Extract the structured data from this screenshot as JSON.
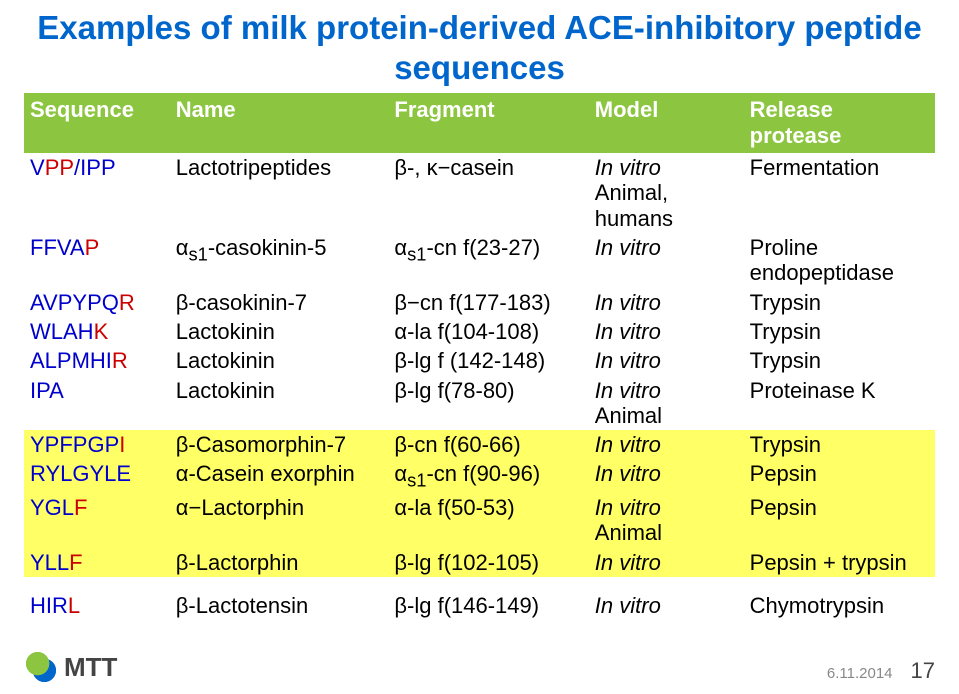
{
  "title": "Examples of milk protein-derived ACE-inhibitory peptide sequences",
  "headers": [
    "Sequence",
    "Name",
    "Fragment",
    "Model",
    "Release protease"
  ],
  "rows": [
    {
      "seq_pre": "V",
      "seq_red": "PP",
      "seq_post": "/IPP",
      "name": "Lactotripeptides",
      "frag": "β-, κ−casein",
      "model": "In vitro\nAnimal,\nhumans",
      "rel": "Fermentation",
      "hl": false
    },
    {
      "seq_pre": "FFVA",
      "seq_red": "P",
      "seq_post": "",
      "name": "αs1-casokinin-5",
      "frag": "αs1-cn f(23-27)",
      "model": "In vitro",
      "rel": "Proline endopeptidase",
      "hl": false
    },
    {
      "seq_pre": "AVPYPQ",
      "seq_red": "R",
      "seq_post": "",
      "name": "β-casokinin-7",
      "frag": "β−cn f(177-183)",
      "model": "In vitro",
      "rel": "Trypsin",
      "hl": false
    },
    {
      "seq_pre": "WLAH",
      "seq_red": "K",
      "seq_post": "",
      "name": "Lactokinin",
      "frag": "α-la f(104-108)",
      "model": "In vitro",
      "rel": "Trypsin",
      "hl": false
    },
    {
      "seq_pre": "ALPMHI",
      "seq_red": "R",
      "seq_post": "",
      "name": "Lactokinin",
      "frag": "β-lg f (142-148)",
      "model": "In vitro",
      "rel": "Trypsin",
      "hl": false
    },
    {
      "seq_pre": "IPA",
      "seq_red": "",
      "seq_post": "",
      "name": "Lactokinin",
      "frag": "β-lg f(78-80)",
      "model": "In vitro\nAnimal",
      "rel": "Proteinase K",
      "hl": false
    },
    {
      "seq_pre": "YPFPGP",
      "seq_red": "I",
      "seq_post": "",
      "name": "β-Casomorphin-7",
      "frag": "β-cn f(60-66)",
      "model": "In vitro",
      "rel": "Trypsin",
      "hl": true
    },
    {
      "seq_pre": "RYLGYLE",
      "seq_red": "",
      "seq_post": "",
      "name": "α-Casein exorphin",
      "frag": "αs1-cn f(90-96)",
      "model": "In vitro",
      "rel": "Pepsin",
      "hl": true
    },
    {
      "seq_pre": "YGL",
      "seq_red": "F",
      "seq_post": "",
      "name": "α−Lactorphin",
      "frag": "α-la f(50-53)",
      "model": "In vitro\nAnimal",
      "rel": "Pepsin",
      "hl": true
    },
    {
      "seq_pre": "YLL",
      "seq_red": "F",
      "seq_post": "",
      "name": "β-Lactorphin",
      "frag": "β-lg f(102-105)",
      "model": "In vitro",
      "rel": "Pepsin + trypsin",
      "hl": true
    },
    {
      "seq_pre": "HIR",
      "seq_red": "L",
      "seq_post": "",
      "name": "β-Lactotensin",
      "frag": "β-lg f(146-149)",
      "model": "In vitro",
      "rel": "Chymotrypsin",
      "hl": false,
      "gap": true
    }
  ],
  "col_widths": [
    "16%",
    "24%",
    "22%",
    "17%",
    "21%"
  ],
  "footer": {
    "logo_text": "MTT",
    "date": "6.11.2014",
    "page": "17"
  },
  "colors": {
    "title": "#0066cc",
    "header_bg": "#8cc540",
    "highlight": "#ffff66",
    "seq": "#0000cc",
    "seq_red": "#cc0000"
  }
}
